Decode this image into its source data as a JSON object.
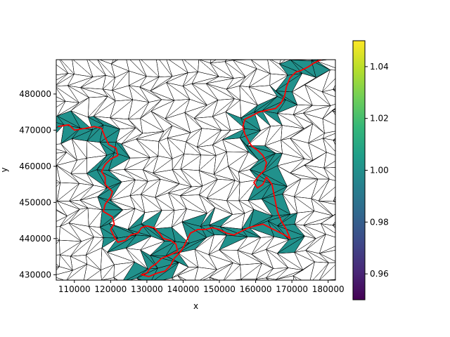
{
  "chart_data": {
    "type": "tripcolor",
    "xlabel": "x",
    "ylabel": "y",
    "xlim": [
      105000,
      182000
    ],
    "ylim": [
      428500,
      489500
    ],
    "x_ticks": [
      {
        "value": 110000,
        "label": "110000"
      },
      {
        "value": 120000,
        "label": "120000"
      },
      {
        "value": 130000,
        "label": "130000"
      },
      {
        "value": 140000,
        "label": "140000"
      },
      {
        "value": 150000,
        "label": "150000"
      },
      {
        "value": 160000,
        "label": "160000"
      },
      {
        "value": 170000,
        "label": "170000"
      },
      {
        "value": 180000,
        "label": "180000"
      }
    ],
    "y_ticks": [
      {
        "value": 430000,
        "label": "430000"
      },
      {
        "value": 440000,
        "label": "440000"
      },
      {
        "value": 450000,
        "label": "450000"
      },
      {
        "value": 460000,
        "label": "460000"
      },
      {
        "value": 470000,
        "label": "470000"
      },
      {
        "value": 480000,
        "label": "480000"
      }
    ],
    "colorbar": {
      "colormap": "viridis",
      "range": [
        0.95,
        1.05
      ],
      "ticks": [
        {
          "value": 0.96,
          "label": "0.96"
        },
        {
          "value": 0.98,
          "label": "0.98"
        },
        {
          "value": 1.0,
          "label": "1.00"
        },
        {
          "value": 1.02,
          "label": "1.02"
        },
        {
          "value": 1.04,
          "label": "1.04"
        }
      ]
    },
    "filled_value": 1.0,
    "colors": {
      "fill": "#21918c",
      "mesh_edge": "#000000",
      "line": "#ff0000"
    },
    "line": [
      [
        105500,
        471000
      ],
      [
        108500,
        471500
      ],
      [
        110000,
        470000
      ],
      [
        113000,
        470500
      ],
      [
        115500,
        471000
      ],
      [
        117500,
        470500
      ],
      [
        118500,
        468000
      ],
      [
        119500,
        466000
      ],
      [
        121500,
        465000
      ],
      [
        122000,
        463000
      ],
      [
        120000,
        462000
      ],
      [
        118500,
        460500
      ],
      [
        117500,
        458500
      ],
      [
        118500,
        457000
      ],
      [
        118500,
        455000
      ],
      [
        120500,
        453000
      ],
      [
        120000,
        451500
      ],
      [
        118500,
        449500
      ],
      [
        118000,
        447500
      ],
      [
        120500,
        446000
      ],
      [
        121000,
        444000
      ],
      [
        120000,
        442500
      ],
      [
        121000,
        440500
      ],
      [
        122000,
        439000
      ],
      [
        124000,
        439500
      ],
      [
        125500,
        441000
      ],
      [
        127500,
        441500
      ],
      [
        128500,
        443000
      ],
      [
        130000,
        443500
      ],
      [
        132000,
        443000
      ],
      [
        133500,
        441500
      ],
      [
        134500,
        440000
      ],
      [
        136500,
        439500
      ],
      [
        138000,
        438500
      ],
      [
        138500,
        436500
      ],
      [
        136500,
        435500
      ],
      [
        134000,
        434500
      ],
      [
        132500,
        433000
      ],
      [
        131000,
        432000
      ],
      [
        130000,
        430500
      ],
      [
        128500,
        430000
      ],
      [
        130500,
        429500
      ],
      [
        133000,
        430500
      ],
      [
        135000,
        431000
      ],
      [
        136500,
        432500
      ],
      [
        137500,
        434500
      ],
      [
        139000,
        436000
      ],
      [
        140000,
        437500
      ],
      [
        141000,
        439500
      ],
      [
        142000,
        441500
      ],
      [
        144000,
        442500
      ],
      [
        146000,
        442500
      ],
      [
        148000,
        443000
      ],
      [
        150000,
        442500
      ],
      [
        152000,
        441500
      ],
      [
        154000,
        441000
      ],
      [
        156000,
        442000
      ],
      [
        158000,
        443000
      ],
      [
        160000,
        443500
      ],
      [
        162000,
        444000
      ],
      [
        164000,
        443000
      ],
      [
        166000,
        442000
      ],
      [
        168000,
        441000
      ],
      [
        169500,
        440000
      ],
      [
        168500,
        442500
      ],
      [
        167000,
        445000
      ],
      [
        166000,
        447500
      ],
      [
        165500,
        450000
      ],
      [
        165000,
        452500
      ],
      [
        164500,
        455000
      ],
      [
        163000,
        457000
      ],
      [
        162000,
        455000
      ],
      [
        160500,
        454000
      ],
      [
        159500,
        455500
      ],
      [
        161000,
        457500
      ],
      [
        162500,
        459000
      ],
      [
        163000,
        461000
      ],
      [
        162000,
        463000
      ],
      [
        160500,
        464500
      ],
      [
        159000,
        465500
      ],
      [
        158000,
        467000
      ],
      [
        157000,
        469000
      ],
      [
        156500,
        471000
      ],
      [
        157000,
        473000
      ],
      [
        159000,
        474000
      ],
      [
        161000,
        475000
      ],
      [
        163000,
        475500
      ],
      [
        165500,
        476000
      ],
      [
        167000,
        477500
      ],
      [
        168000,
        479500
      ],
      [
        168500,
        482000
      ],
      [
        169500,
        484500
      ],
      [
        171000,
        486000
      ],
      [
        172500,
        486500
      ],
      [
        174500,
        487500
      ],
      [
        176000,
        488500
      ],
      [
        178000,
        489500
      ]
    ]
  }
}
